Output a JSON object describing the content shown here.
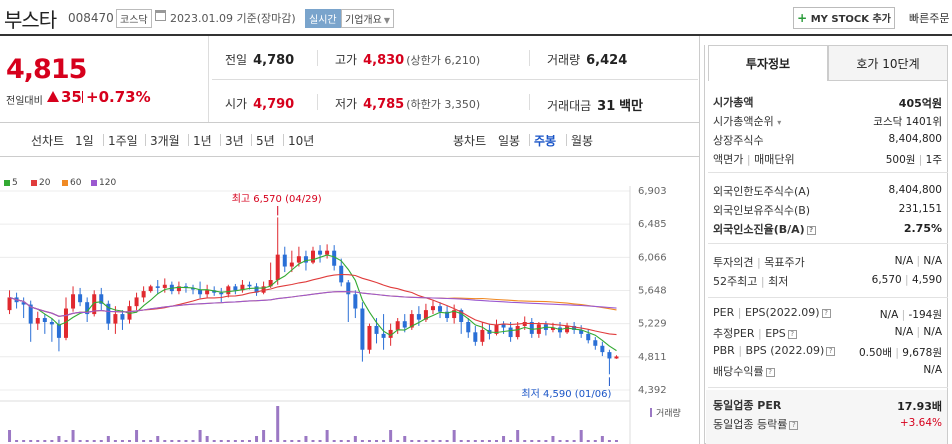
{
  "header": {
    "company": "부스타",
    "code": "008470",
    "market": "코스닥",
    "date": "2023.01.09",
    "date_suffix": "기준(장마감)",
    "realtime": "실시간",
    "company_info": "기업개요",
    "mystock_btn": "MY STOCK 추가",
    "quick_order": "빠른주문"
  },
  "price": {
    "now": "4,815",
    "prev_label": "전일대비",
    "change": "35",
    "change_pct": "+0.73%"
  },
  "stats": {
    "prev_close_label": "전일",
    "prev_close": "4,780",
    "high_label": "고가",
    "high": "4,830",
    "upper_limit": "(상한가 6,210)",
    "volume_label": "거래량",
    "volume": "6,424",
    "open_label": "시가",
    "open": "4,790",
    "low_label": "저가",
    "low": "4,785",
    "lower_limit": "(하한가 3,350)",
    "amount_label": "거래대금",
    "amount": "31",
    "amount_unit": "백만"
  },
  "periods": {
    "line_label": "선차트",
    "line_tabs": [
      "1일",
      "1주일",
      "3개월",
      "1년",
      "3년",
      "5년",
      "10년"
    ],
    "candle_label": "봉차트",
    "candle_tabs": [
      "일봉",
      "주봉",
      "월봉"
    ],
    "selected": "주봉"
  },
  "chart_data": {
    "type": "candlestick",
    "legend": [
      {
        "name": "5",
        "color": "#33aa33"
      },
      {
        "name": "20",
        "color": "#e03c3c"
      },
      {
        "name": "60",
        "color": "#f08a24"
      },
      {
        "name": "120",
        "color": "#9b59d0"
      }
    ],
    "yticks": [
      "6,903",
      "6,485",
      "6,066",
      "5,648",
      "5,229",
      "4,811",
      "4,392"
    ],
    "ylim": [
      4392,
      6903
    ],
    "max_annotation": "최고 6,570 (04/29)",
    "min_annotation": "최저 4,590 (01/06)",
    "volume_label": "거래량",
    "candles": [
      [
        5400,
        5560,
        5350,
        5650
      ],
      [
        5560,
        5500,
        5420,
        5620
      ],
      [
        5500,
        5470,
        5300,
        5560
      ],
      [
        5470,
        5230,
        5000,
        5520
      ],
      [
        5230,
        5300,
        5150,
        5380
      ],
      [
        5300,
        5250,
        5100,
        5350
      ],
      [
        5250,
        5220,
        5000,
        5300
      ],
      [
        5220,
        5050,
        4880,
        5280
      ],
      [
        5050,
        5420,
        5020,
        5560
      ],
      [
        5420,
        5600,
        5380,
        5700
      ],
      [
        5600,
        5500,
        5450,
        5680
      ],
      [
        5500,
        5350,
        5250,
        5560
      ],
      [
        5350,
        5600,
        5320,
        5650
      ],
      [
        5600,
        5480,
        5400,
        5680
      ],
      [
        5480,
        5230,
        5150,
        5520
      ],
      [
        5230,
        5350,
        5100,
        5450
      ],
      [
        5350,
        5280,
        5150,
        5400
      ],
      [
        5280,
        5450,
        5230,
        5520
      ],
      [
        5450,
        5560,
        5400,
        5620
      ],
      [
        5560,
        5640,
        5500,
        5700
      ],
      [
        5640,
        5700,
        5620,
        5720
      ],
      [
        5700,
        5680,
        5600,
        5780
      ],
      [
        5680,
        5720,
        5620,
        5800
      ],
      [
        5720,
        5640,
        5600,
        5760
      ],
      [
        5640,
        5700,
        5600,
        5760
      ],
      [
        5700,
        5680,
        5620,
        5740
      ],
      [
        5680,
        5660,
        5600,
        5720
      ],
      [
        5660,
        5600,
        5550,
        5760
      ],
      [
        5600,
        5650,
        5560,
        5720
      ],
      [
        5650,
        5620,
        5580,
        5700
      ],
      [
        5620,
        5600,
        5500,
        5680
      ],
      [
        5600,
        5700,
        5560,
        5720
      ],
      [
        5700,
        5650,
        5600,
        5730
      ],
      [
        5650,
        5720,
        5620,
        5780
      ],
      [
        5720,
        5700,
        5660,
        5760
      ],
      [
        5700,
        5620,
        5580,
        5740
      ],
      [
        5620,
        5700,
        5600,
        5760
      ],
      [
        5700,
        5780,
        5680,
        6000
      ],
      [
        5780,
        6100,
        5720,
        6570
      ],
      [
        6100,
        5950,
        5880,
        6200
      ],
      [
        5950,
        6000,
        5880,
        6150
      ],
      [
        6000,
        6080,
        5950,
        6200
      ],
      [
        6080,
        6000,
        5900,
        6150
      ],
      [
        6000,
        6150,
        5980,
        6200
      ],
      [
        6150,
        6100,
        6000,
        6220
      ],
      [
        6100,
        6150,
        6050,
        6230
      ],
      [
        6150,
        5960,
        5900,
        6220
      ],
      [
        5960,
        5750,
        5700,
        6050
      ],
      [
        5750,
        5600,
        5250,
        5780
      ],
      [
        5600,
        5420,
        5300,
        5650
      ],
      [
        5420,
        4900,
        4750,
        5500
      ],
      [
        4900,
        5200,
        4850,
        5230
      ],
      [
        5200,
        5100,
        4980,
        5300
      ],
      [
        5100,
        5050,
        4900,
        5350
      ],
      [
        5050,
        5150,
        4950,
        5230
      ],
      [
        5150,
        5260,
        5100,
        5300
      ],
      [
        5260,
        5180,
        5120,
        5350
      ],
      [
        5180,
        5350,
        5150,
        5400
      ],
      [
        5350,
        5280,
        5200,
        5450
      ],
      [
        5280,
        5400,
        5250,
        5480
      ],
      [
        5400,
        5450,
        5350,
        5520
      ],
      [
        5450,
        5380,
        5300,
        5500
      ],
      [
        5380,
        5300,
        5250,
        5450
      ],
      [
        5300,
        5400,
        5230,
        5470
      ],
      [
        5400,
        5250,
        5100,
        5420
      ],
      [
        5250,
        5120,
        5050,
        5300
      ],
      [
        5120,
        5000,
        4950,
        5200
      ],
      [
        5000,
        5150,
        4950,
        5250
      ],
      [
        5150,
        5100,
        5030,
        5230
      ],
      [
        5100,
        5220,
        5080,
        5280
      ],
      [
        5220,
        5180,
        5100,
        5260
      ],
      [
        5180,
        5060,
        5000,
        5250
      ],
      [
        5060,
        5200,
        5030,
        5250
      ],
      [
        5200,
        5250,
        5150,
        5320
      ],
      [
        5250,
        5100,
        5050,
        5300
      ],
      [
        5100,
        5220,
        5050,
        5250
      ],
      [
        5220,
        5150,
        5080,
        5260
      ],
      [
        5150,
        5180,
        5120,
        5240
      ],
      [
        5180,
        5120,
        5050,
        5250
      ],
      [
        5120,
        5200,
        5100,
        5240
      ],
      [
        5200,
        5150,
        5100,
        5250
      ],
      [
        5150,
        5100,
        5050,
        5210
      ],
      [
        5100,
        5020,
        4980,
        5160
      ],
      [
        5020,
        4950,
        4900,
        5060
      ],
      [
        4950,
        4870,
        4820,
        5000
      ],
      [
        4870,
        4790,
        4590,
        4900
      ],
      [
        4790,
        4815,
        4785,
        4830
      ]
    ]
  },
  "right": {
    "tabs": [
      "투자정보",
      "호가 10단계"
    ],
    "market_cap_label": "시가총액",
    "market_cap": "405억원",
    "cap_rank_label": "시가총액순위",
    "cap_rank": "코스닥 1401위",
    "shares_label": "상장주식수",
    "shares": "8,404,800",
    "par_label": "액면가",
    "unit_label": "매매단위",
    "par": "500원",
    "unit": "1주",
    "foreign_limit_label": "외국인한도주식수(A)",
    "foreign_limit": "8,404,800",
    "foreign_hold_label": "외국인보유주식수(B)",
    "foreign_hold": "231,151",
    "foreign_ratio_label": "외국인소진율(B/A)",
    "foreign_ratio": "2.75%",
    "opinion_label": "투자의견",
    "target_label": "목표주가",
    "opinion": "N/A",
    "target": "N/A",
    "w52_label": "52주최고",
    "w52_low_label": "최저",
    "w52_high": "6,570",
    "w52_low": "4,590",
    "per_label": "PER",
    "eps_label": "EPS(2022.09)",
    "per": "N/A",
    "eps": "-194원",
    "est_per_label": "추정PER",
    "est_eps_label": "EPS",
    "est_per": "N/A",
    "est_eps": "N/A",
    "pbr_label": "PBR",
    "bps_label": "BPS (2022.09)",
    "pbr": "0.50배",
    "bps": "9,678원",
    "div_label": "배당수익률",
    "div": "N/A",
    "ind_per_label": "동일업종 PER",
    "ind_per": "17.93배",
    "ind_rate_label": "동일업종 등락률",
    "ind_rate": "+3.64%"
  }
}
